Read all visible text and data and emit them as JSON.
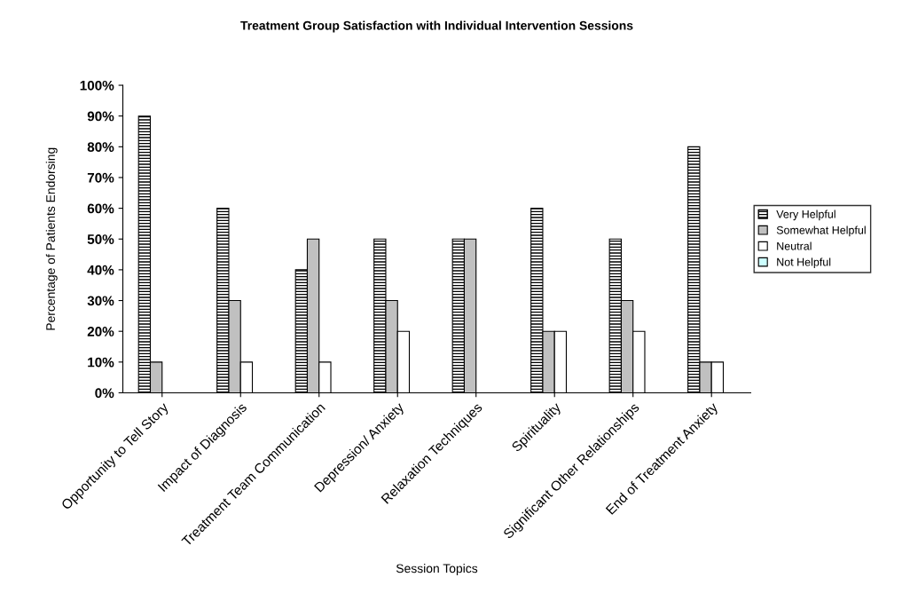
{
  "chart_data": {
    "type": "bar",
    "title": "Treatment Group Satisfaction with Individual Intervention Sessions",
    "xlabel": "Session Topics",
    "ylabel": "Percentage of Patients Endorsing",
    "categories": [
      "Opportunity to Tell Story",
      "Impact of Diagnosis",
      "Treatment Team Communication",
      "Depression/ Anxiety",
      "Relaxation Techniques",
      "Spirituality",
      "Significant Other Relationships",
      "End of Treatment Anxiety"
    ],
    "series": [
      {
        "name": "Very Helpful",
        "color": "#000000",
        "values": [
          90,
          60,
          40,
          50,
          50,
          60,
          50,
          80
        ]
      },
      {
        "name": "Somewhat Helpful",
        "color": "#c0c0c0",
        "values": [
          10,
          30,
          50,
          30,
          50,
          20,
          30,
          10
        ]
      },
      {
        "name": "Neutral",
        "color": "#ffffff",
        "values": [
          0,
          10,
          10,
          20,
          0,
          20,
          20,
          10
        ]
      },
      {
        "name": "Not Helpful",
        "color": "#ccffff",
        "values": [
          0,
          0,
          0,
          0,
          0,
          0,
          0,
          0
        ]
      }
    ],
    "ylim": [
      0,
      100
    ],
    "yticks": [
      {
        "value": 0,
        "label": "0%"
      },
      {
        "value": 10,
        "label": "10%"
      },
      {
        "value": 20,
        "label": "20%"
      },
      {
        "value": 30,
        "label": "30%"
      },
      {
        "value": 40,
        "label": "40%"
      },
      {
        "value": 50,
        "label": "50%"
      },
      {
        "value": 60,
        "label": "60%"
      },
      {
        "value": 70,
        "label": "70%"
      },
      {
        "value": 80,
        "label": "80%"
      },
      {
        "value": 90,
        "label": "90%"
      },
      {
        "value": 100,
        "label": "100%"
      }
    ],
    "grid": false,
    "legend": "right"
  }
}
